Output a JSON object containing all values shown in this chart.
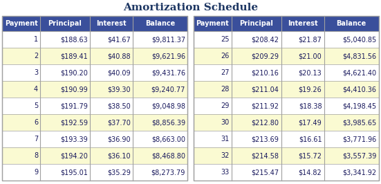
{
  "title": "Amortization Schedule",
  "title_color": "#1F3864",
  "header_bg": "#3A4F9B",
  "header_text_color": "#FFFFFF",
  "row_bg_white": "#FFFFFF",
  "row_bg_cream": "#FAFAD2",
  "border_color": "#A0A0A0",
  "text_color": "#1A1A5E",
  "gap_color": "#D0D0D0",
  "headers": [
    "Payment",
    "Principal",
    "Interest",
    "Balance"
  ],
  "left_data": [
    [
      "1",
      "$188.63",
      "$41.67",
      "$9,811.37"
    ],
    [
      "2",
      "$189.41",
      "$40.88",
      "$9,621.96"
    ],
    [
      "3",
      "$190.20",
      "$40.09",
      "$9,431.76"
    ],
    [
      "4",
      "$190.99",
      "$39.30",
      "$9,240.77"
    ],
    [
      "5",
      "$191.79",
      "$38.50",
      "$9,048.98"
    ],
    [
      "6",
      "$192.59",
      "$37.70",
      "$8,856.39"
    ],
    [
      "7",
      "$193.39",
      "$36.90",
      "$8,663.00"
    ],
    [
      "8",
      "$194.20",
      "$36.10",
      "$8,468.80"
    ],
    [
      "9",
      "$195.01",
      "$35.29",
      "$8,273.79"
    ]
  ],
  "right_data": [
    [
      "25",
      "$208.42",
      "$21.87",
      "$5,040.85"
    ],
    [
      "26",
      "$209.29",
      "$21.00",
      "$4,831.56"
    ],
    [
      "27",
      "$210.16",
      "$20.13",
      "$4,621.40"
    ],
    [
      "28",
      "$211.04",
      "$19.26",
      "$4,410.36"
    ],
    [
      "29",
      "$211.92",
      "$18.38",
      "$4,198.45"
    ],
    [
      "30",
      "$212.80",
      "$17.49",
      "$3,985.65"
    ],
    [
      "31",
      "$213.69",
      "$16.61",
      "$3,771.96"
    ],
    [
      "32",
      "$214.58",
      "$15.72",
      "$3,557.39"
    ],
    [
      "33",
      "$215.47",
      "$14.82",
      "$3,341.92"
    ]
  ],
  "figsize": [
    5.51,
    2.66
  ],
  "dpi": 100
}
